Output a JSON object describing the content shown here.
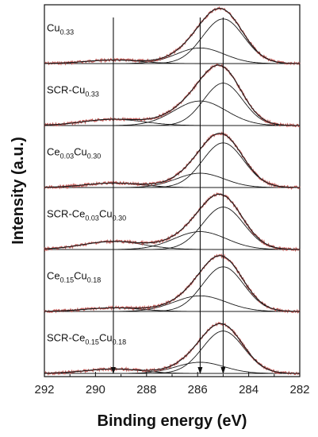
{
  "chart_data": {
    "type": "line",
    "title": "",
    "xlabel": "Binding energy (eV)",
    "ylabel": "Intensity (a.u.)",
    "xlim": [
      292,
      282
    ],
    "x_reversed": true,
    "x_ticks": [
      "292",
      "290",
      "288",
      "286",
      "284",
      "282"
    ],
    "y_ticks": [],
    "reference_lines_ev": [
      289.3,
      285.9,
      285.0
    ],
    "colors": {
      "experimental": "#c0504d",
      "fit": "#1a1a1a"
    },
    "series": [
      {
        "name": "Cu0.33",
        "name_main": [
          "Cu"
        ],
        "name_sub": [
          "0.33"
        ],
        "peaks": [
          {
            "center": 285.0,
            "amplitude": 1.0,
            "fwhm": 1.9
          },
          {
            "center": 285.9,
            "amplitude": 0.35,
            "fwhm": 2.2
          },
          {
            "center": 289.3,
            "amplitude": 0.08,
            "fwhm": 2.5
          }
        ]
      },
      {
        "name": "SCR-Cu0.33",
        "name_main": [
          "SCR-Cu"
        ],
        "name_sub": [
          "0.33"
        ],
        "peaks": [
          {
            "center": 285.0,
            "amplitude": 0.95,
            "fwhm": 1.8
          },
          {
            "center": 285.9,
            "amplitude": 0.55,
            "fwhm": 2.4
          },
          {
            "center": 289.3,
            "amplitude": 0.14,
            "fwhm": 2.8
          }
        ]
      },
      {
        "name": "Ce0.03Cu0.30",
        "name_main": [
          "Ce",
          "Cu"
        ],
        "name_sub": [
          "0.03",
          "0.30"
        ],
        "peaks": [
          {
            "center": 285.0,
            "amplitude": 1.0,
            "fwhm": 1.9
          },
          {
            "center": 285.9,
            "amplitude": 0.32,
            "fwhm": 2.2
          },
          {
            "center": 289.3,
            "amplitude": 0.1,
            "fwhm": 2.6
          }
        ]
      },
      {
        "name": "SCR-Ce0.03Cu0.30",
        "name_main": [
          "SCR-Ce",
          "Cu"
        ],
        "name_sub": [
          "0.03",
          "0.30"
        ],
        "peaks": [
          {
            "center": 285.0,
            "amplitude": 0.95,
            "fwhm": 1.9
          },
          {
            "center": 285.9,
            "amplitude": 0.4,
            "fwhm": 2.4
          },
          {
            "center": 289.3,
            "amplitude": 0.18,
            "fwhm": 2.8
          }
        ]
      },
      {
        "name": "Ce0.15Cu0.18",
        "name_main": [
          "Ce",
          "Cu"
        ],
        "name_sub": [
          "0.15",
          "0.18"
        ],
        "peaks": [
          {
            "center": 285.0,
            "amplitude": 1.0,
            "fwhm": 1.9
          },
          {
            "center": 285.9,
            "amplitude": 0.35,
            "fwhm": 2.4
          },
          {
            "center": 289.3,
            "amplitude": 0.08,
            "fwhm": 2.6
          }
        ]
      },
      {
        "name": "SCR-Ce0.15Cu0.18",
        "name_main": [
          "SCR-Ce",
          "Cu"
        ],
        "name_sub": [
          "0.15",
          "0.18"
        ],
        "peaks": [
          {
            "center": 285.0,
            "amplitude": 0.95,
            "fwhm": 1.9
          },
          {
            "center": 285.9,
            "amplitude": 0.25,
            "fwhm": 2.2
          },
          {
            "center": 289.3,
            "amplitude": 0.1,
            "fwhm": 2.6
          }
        ]
      }
    ]
  }
}
